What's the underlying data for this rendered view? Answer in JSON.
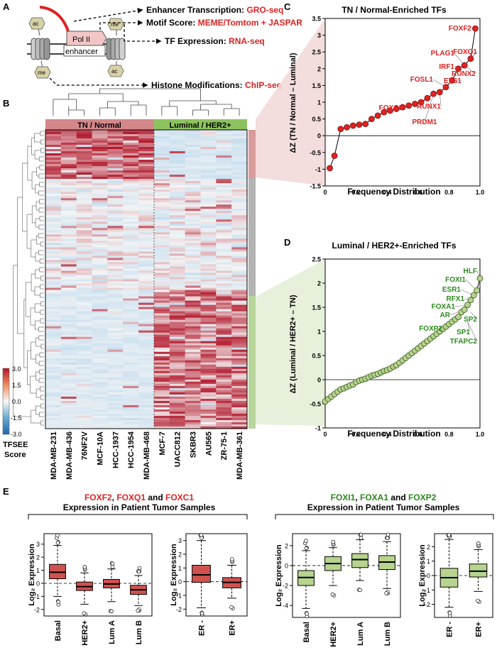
{
  "panels": {
    "a": "A",
    "b": "B",
    "c": "C",
    "d": "D",
    "e": "E"
  },
  "panel_a": {
    "pol_label": "Pol II",
    "enhancer_label": "enhancer",
    "mark_ac": "ac",
    "mark_me": "me",
    "rows": [
      {
        "prefix": "Enhancer Transcription: ",
        "method": "GRO-seq"
      },
      {
        "prefix": "Motif Score: ",
        "method": "MEME/Tomtom + JASPAR"
      },
      {
        "prefix": "TF Expression: ",
        "method": "RNA-seq"
      },
      {
        "prefix": "Histone Modifications: ",
        "method": "ChIP-seq"
      }
    ],
    "colors": {
      "red": "#dd2222",
      "pol_fill": "#f2c6c6",
      "histone": "#cfcfcf",
      "mark": "#d9d2a6"
    }
  },
  "panel_b": {
    "group_tn": "TN / Normal",
    "group_lum": "Luminal / HER2+",
    "cell_lines": [
      "MDA-MB-231",
      "MDA-MB-436",
      "76NF2V",
      "MCF-10A",
      "HCC-1937",
      "HCC-1954",
      "MDA-MB-468",
      "MCF-7",
      "UACC812",
      "SKBR3",
      "AU565",
      "ZR-75-1",
      "MDA-MB-361"
    ],
    "scale": {
      "title_line1": "TFSEE",
      "title_line2": "Score",
      "ticks": [
        "3.0",
        "1.5",
        "0.0",
        "-1.5",
        "-3.0"
      ]
    },
    "colors": {
      "tn": "#d4888b",
      "lum": "#8dc35f",
      "side_red": "#d99a9c",
      "side_gray": "#b3b3b3",
      "side_green": "#b7d59a",
      "high": "#b2182b",
      "mid": "#f4f4f4",
      "low": "#2166ac"
    }
  },
  "panel_c": {
    "title": "TN / Normal-Enriched TFs",
    "ylabel": "ΔZ (TN / Normal – Luminal)",
    "xlabel": "Frequency Distribution",
    "labels": [
      "FOXF2",
      "FOXQ1",
      "PLAG1",
      "IRF1",
      "RUNX2",
      "ETS1",
      "FOSL1",
      "RUNX1",
      "FOXC1",
      "PRDM1"
    ]
  },
  "panel_d": {
    "title": "Luminal / HER2+-Enriched TFs",
    "ylabel": "ΔZ (Luminal / HER2+ – TN)",
    "xlabel": "Frequency Distribution",
    "labels": [
      "HLF",
      "FOXI1",
      "ESR1",
      "RFX1",
      "FOXA1",
      "AR",
      "SP2",
      "FOXP2",
      "SP1",
      "TFAPC2"
    ]
  },
  "panel_e": {
    "left_title": {
      "g1": "FOXF2",
      "sep1": ", ",
      "g2": "FOXQ1",
      "sep2": " and ",
      "g3": "FOXC1",
      "line2": "Expression in Patient Tumor Samples"
    },
    "right_title": {
      "g1": "FOXI1",
      "sep1": ", ",
      "g2": "FOXA1",
      "sep2": " and ",
      "g3": "FOXP2",
      "line2": "Expression in Patient Tumor Samples"
    },
    "ylabel": "Log₂ Expression",
    "subtype_cats": [
      "Basal",
      "HER2+",
      "Lum A",
      "Lum B"
    ],
    "er_cats": [
      "ER -",
      "ER+"
    ],
    "colors": {
      "red_box": "#d0524f",
      "green_box": "#b7d38e",
      "title_red": "#dd2222",
      "title_green": "#2c8a1e"
    }
  },
  "chart_data": [
    {
      "type": "scatter",
      "title": "TN / Normal-Enriched TFs",
      "xlabel": "Frequency Distribution",
      "ylabel": "ΔZ (TN / Normal – Luminal)",
      "xlim": [
        0,
        1.0
      ],
      "ylim": [
        -1.5,
        3.5
      ],
      "xticks": [
        0,
        0.2,
        0.4,
        0.6,
        0.8,
        1.0
      ],
      "yticks": [
        -1.5,
        -1,
        -0.5,
        0,
        0.5,
        1,
        1.5,
        2,
        2.5,
        3,
        3.5
      ],
      "color": "#dd2222",
      "x": [
        0.03,
        0.06,
        0.1,
        0.14,
        0.18,
        0.22,
        0.26,
        0.3,
        0.34,
        0.38,
        0.42,
        0.46,
        0.5,
        0.54,
        0.58,
        0.62,
        0.66,
        0.7,
        0.74,
        0.78,
        0.82,
        0.86,
        0.9,
        0.94,
        0.97
      ],
      "y": [
        -0.97,
        -0.6,
        0.2,
        0.25,
        0.3,
        0.33,
        0.35,
        0.5,
        0.6,
        0.7,
        0.75,
        0.8,
        0.85,
        0.9,
        0.95,
        1.0,
        1.12,
        1.25,
        1.3,
        1.45,
        1.65,
        2.0,
        2.1,
        2.3,
        3.2
      ],
      "annotations": [
        {
          "label": "FOXF2",
          "x": 0.97,
          "y": 3.2
        },
        {
          "label": "FOXQ1",
          "x": 0.94,
          "y": 2.3
        },
        {
          "label": "PLAG1",
          "x": 0.9,
          "y": 2.1
        },
        {
          "label": "IRF1",
          "x": 0.86,
          "y": 2.0
        },
        {
          "label": "RUNX2",
          "x": 0.9,
          "y": 2.1
        },
        {
          "label": "ETS1",
          "x": 0.82,
          "y": 1.65
        },
        {
          "label": "FOSL1",
          "x": 0.78,
          "y": 1.45
        },
        {
          "label": "RUNX1",
          "x": 0.74,
          "y": 1.3
        },
        {
          "label": "FOXC1",
          "x": 0.5,
          "y": 0.85
        },
        {
          "label": "PRDM1",
          "x": 0.7,
          "y": 1.25
        }
      ]
    },
    {
      "type": "scatter",
      "title": "Luminal / HER2+-Enriched TFs",
      "xlabel": "Frequency Distribution",
      "ylabel": "ΔZ (Luminal / HER2+ – TN)",
      "xlim": [
        0,
        1.0
      ],
      "ylim": [
        -1.0,
        2.5
      ],
      "xticks": [
        0,
        0.2,
        0.4,
        0.6,
        0.8,
        1.0
      ],
      "yticks": [
        -1,
        -0.5,
        0,
        0.5,
        1,
        1.5,
        2,
        2.5
      ],
      "color": "#8dc35f",
      "x": [
        0.0,
        0.02,
        0.04,
        0.06,
        0.08,
        0.1,
        0.12,
        0.14,
        0.16,
        0.18,
        0.2,
        0.22,
        0.24,
        0.26,
        0.28,
        0.3,
        0.32,
        0.34,
        0.36,
        0.38,
        0.4,
        0.42,
        0.44,
        0.46,
        0.48,
        0.5,
        0.52,
        0.54,
        0.56,
        0.58,
        0.6,
        0.62,
        0.64,
        0.66,
        0.68,
        0.7,
        0.72,
        0.74,
        0.76,
        0.78,
        0.8,
        0.82,
        0.84,
        0.86,
        0.88,
        0.9,
        0.92,
        0.94,
        0.96,
        0.98,
        1.0
      ],
      "y": [
        -0.45,
        -0.4,
        -0.35,
        -0.3,
        -0.25,
        -0.2,
        -0.18,
        -0.15,
        -0.12,
        -0.1,
        -0.05,
        -0.02,
        0.0,
        0.02,
        0.05,
        0.08,
        0.1,
        0.12,
        0.15,
        0.18,
        0.2,
        0.23,
        0.27,
        0.3,
        0.35,
        0.4,
        0.45,
        0.5,
        0.55,
        0.6,
        0.65,
        0.7,
        0.75,
        0.8,
        0.85,
        0.9,
        0.95,
        1.0,
        1.05,
        1.1,
        1.15,
        1.2,
        1.25,
        1.3,
        1.4,
        1.45,
        1.55,
        1.65,
        1.75,
        1.85,
        2.1
      ],
      "annotations": [
        {
          "label": "HLF",
          "x": 1.0,
          "y": 2.1
        },
        {
          "label": "FOXI1",
          "x": 0.98,
          "y": 1.85
        },
        {
          "label": "ESR1",
          "x": 0.96,
          "y": 1.75
        },
        {
          "label": "RFX1",
          "x": 0.94,
          "y": 1.65
        },
        {
          "label": "FOXA1",
          "x": 0.92,
          "y": 1.55
        },
        {
          "label": "AR",
          "x": 0.9,
          "y": 1.45
        },
        {
          "label": "SP2",
          "x": 0.94,
          "y": 1.4
        },
        {
          "label": "FOXP2",
          "x": 0.8,
          "y": 1.15
        },
        {
          "label": "SP1",
          "x": 0.92,
          "y": 1.2
        },
        {
          "label": "TFAPC2",
          "x": 0.92,
          "y": 1.2
        }
      ]
    },
    {
      "type": "box",
      "title": "FOXF2, FOXQ1 and FOXC1 Expression in Patient Tumor Samples",
      "ylabel": "Log₂ Expression",
      "categories": [
        "Basal",
        "HER2+",
        "Lum A",
        "Lum B"
      ],
      "ylim": [
        -2.5,
        3.8
      ],
      "yticks": [
        -2,
        -1,
        0,
        1,
        2,
        3
      ],
      "boxes": [
        {
          "q1": 0.35,
          "median": 0.85,
          "q3": 1.45,
          "whisker_low": -1.0,
          "whisker_high": 2.9
        },
        {
          "q1": -0.55,
          "median": -0.25,
          "q3": 0.1,
          "whisker_low": -1.6,
          "whisker_high": 0.8
        },
        {
          "q1": -0.35,
          "median": -0.05,
          "q3": 0.3,
          "whisker_low": -1.4,
          "whisker_high": 1.1
        },
        {
          "q1": -0.85,
          "median": -0.5,
          "q3": -0.15,
          "whisker_low": -1.7,
          "whisker_high": 0.6
        }
      ]
    },
    {
      "type": "box",
      "categories": [
        "ER -",
        "ER+"
      ],
      "ylabel": "Log₂ Expression",
      "ylim": [
        -2.5,
        3.5
      ],
      "yticks": [
        -2,
        -1,
        0,
        1,
        2,
        3
      ],
      "boxes": [
        {
          "q1": -0.05,
          "median": 0.5,
          "q3": 1.2,
          "whisker_low": -1.9,
          "whisker_high": 3.0
        },
        {
          "q1": -0.45,
          "median": -0.05,
          "q3": 0.3,
          "whisker_low": -1.2,
          "whisker_high": 1.2
        }
      ]
    },
    {
      "type": "box",
      "title": "FOXI1, FOXA1 and FOXP2 Expression in Patient Tumor Samples",
      "ylabel": "Log₂ Expression",
      "categories": [
        "Basal",
        "HER2+",
        "Lum A",
        "Lum B"
      ],
      "ylim": [
        -5.2,
        3.2
      ],
      "yticks": [
        -4,
        -2,
        0,
        2
      ],
      "boxes": [
        {
          "q1": -2.0,
          "median": -1.2,
          "q3": -0.5,
          "whisker_low": -4.3,
          "whisker_high": 1.5
        },
        {
          "q1": -0.5,
          "median": 0.2,
          "q3": 0.9,
          "whisker_low": -2.0,
          "whisker_high": 1.8
        },
        {
          "q1": -0.2,
          "median": 0.6,
          "q3": 1.2,
          "whisker_low": -1.5,
          "whisker_high": 2.6
        },
        {
          "q1": -0.4,
          "median": 0.35,
          "q3": 1.0,
          "whisker_low": -2.3,
          "whisker_high": 2.4
        }
      ]
    },
    {
      "type": "box",
      "categories": [
        "ER -",
        "ER+"
      ],
      "ylabel": "Log₂ Expression",
      "ylim": [
        -2.9,
        2.9
      ],
      "yticks": [
        -2,
        -1,
        0,
        1,
        2
      ],
      "boxes": [
        {
          "q1": -0.8,
          "median": -0.15,
          "q3": 0.5,
          "whisker_low": -2.2,
          "whisker_high": 2.5
        },
        {
          "q1": -0.1,
          "median": 0.3,
          "q3": 0.8,
          "whisker_low": -1.1,
          "whisker_high": 1.8
        }
      ]
    }
  ]
}
